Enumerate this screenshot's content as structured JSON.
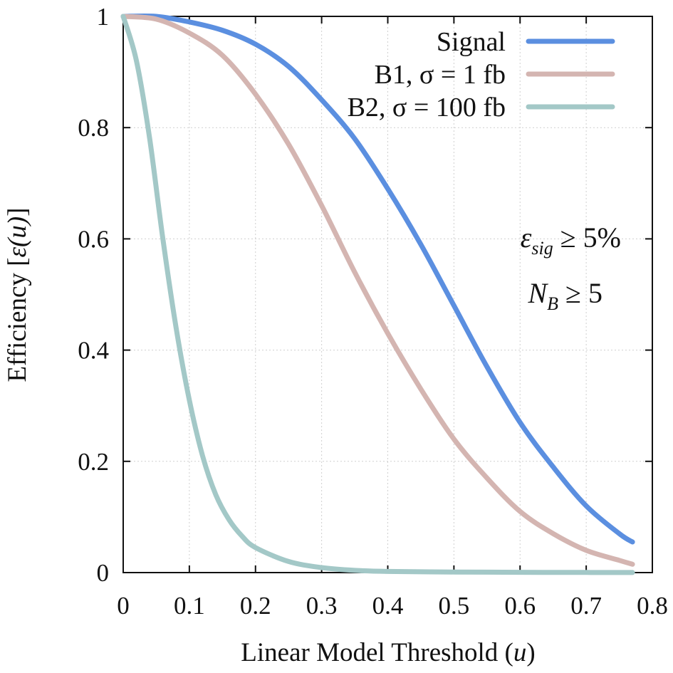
{
  "chart_data": {
    "type": "line",
    "title": "",
    "xlabel": "Linear Model Threshold (u)",
    "ylabel": "Efficiency [ε(u)]",
    "xlim": [
      0,
      0.8
    ],
    "ylim": [
      0,
      1
    ],
    "xticks": [
      "0",
      "0.1",
      "0.2",
      "0.3",
      "0.4",
      "0.5",
      "0.6",
      "0.7",
      "0.8"
    ],
    "yticks": [
      "0",
      "0.2",
      "0.4",
      "0.6",
      "0.8",
      "1"
    ],
    "grid": true,
    "legend_position": "top-right",
    "series": [
      {
        "name": "Signal",
        "color": "#5b8fe0",
        "x": [
          0,
          0.05,
          0.1,
          0.15,
          0.2,
          0.25,
          0.3,
          0.35,
          0.4,
          0.45,
          0.5,
          0.55,
          0.6,
          0.65,
          0.7,
          0.75,
          0.77
        ],
        "y": [
          1.0,
          1.0,
          0.99,
          0.975,
          0.95,
          0.91,
          0.85,
          0.78,
          0.69,
          0.59,
          0.48,
          0.37,
          0.27,
          0.19,
          0.12,
          0.07,
          0.055
        ]
      },
      {
        "name": "B1, σ = 1 fb",
        "color": "#d4b5b1",
        "x": [
          0,
          0.05,
          0.1,
          0.15,
          0.2,
          0.25,
          0.3,
          0.35,
          0.4,
          0.45,
          0.5,
          0.55,
          0.6,
          0.65,
          0.7,
          0.75,
          0.77
        ],
        "y": [
          1.0,
          0.995,
          0.97,
          0.93,
          0.86,
          0.77,
          0.66,
          0.54,
          0.43,
          0.33,
          0.24,
          0.17,
          0.11,
          0.07,
          0.04,
          0.022,
          0.015
        ]
      },
      {
        "name": "B2, σ = 100 fb",
        "color": "#a3c8c7",
        "x": [
          0,
          0.02,
          0.04,
          0.06,
          0.08,
          0.1,
          0.12,
          0.14,
          0.16,
          0.18,
          0.2,
          0.25,
          0.3,
          0.35,
          0.4,
          0.5,
          0.6,
          0.7,
          0.77
        ],
        "y": [
          1.0,
          0.92,
          0.78,
          0.6,
          0.44,
          0.31,
          0.21,
          0.14,
          0.095,
          0.065,
          0.045,
          0.02,
          0.009,
          0.004,
          0.002,
          0.001,
          0.0005,
          0.0002,
          0.0001
        ]
      }
    ],
    "annotations": [
      "ε_sig ≥ 5%",
      "N_B ≥ 5"
    ]
  },
  "annotation_parts": {
    "line1": {
      "epsilon": "ε",
      "sub": "sig",
      "rest": " ≥ 5%"
    },
    "line2": {
      "n": "N",
      "sub": "B",
      "rest": " ≥ 5"
    }
  },
  "axis_label_parts": {
    "x_main": "Linear Model Threshold (",
    "x_var": "u",
    "x_close": ")",
    "y_main": "Efficiency [",
    "y_var": "ε(u)",
    "y_close": "]"
  }
}
